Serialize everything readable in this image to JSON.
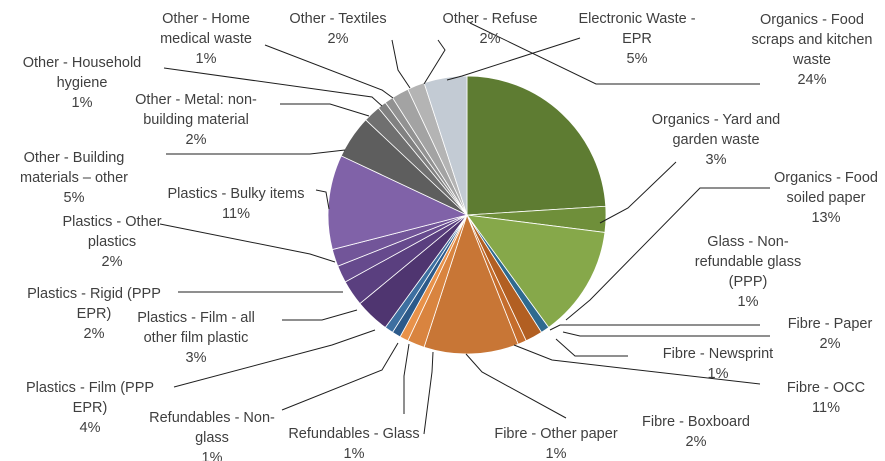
{
  "chart_data": {
    "type": "pie",
    "start_angle_deg": 0,
    "direction": "clockwise",
    "slices": [
      {
        "lines": [
          "Organics - Food",
          "scraps and kitchen",
          "waste"
        ],
        "value": 24,
        "label": "24%",
        "color": "#5e7c32"
      },
      {
        "lines": [
          "Organics - Yard and",
          "garden waste"
        ],
        "value": 3,
        "label": "3%",
        "color": "#6f8f3a"
      },
      {
        "lines": [
          "Organics - Food",
          "soiled paper"
        ],
        "value": 13,
        "label": "13%",
        "color": "#86a84a"
      },
      {
        "lines": [
          "Glass - Non-",
          "refundable glass",
          "(PPP)"
        ],
        "value": 1,
        "label": "1%",
        "color": "#2f6a8f"
      },
      {
        "lines": [
          "Fibre - Paper"
        ],
        "value": 2,
        "label": "2%",
        "color": "#b25f22"
      },
      {
        "lines": [
          "Fibre - Newsprint"
        ],
        "value": 1,
        "label": "1%",
        "color": "#c56d2c"
      },
      {
        "lines": [
          "Fibre - OCC"
        ],
        "value": 11,
        "label": "11%",
        "color": "#c87636"
      },
      {
        "lines": [
          "Fibre - Boxboard"
        ],
        "value": 2,
        "label": "2%",
        "color": "#d9843f"
      },
      {
        "lines": [
          "Fibre - Other paper"
        ],
        "value": 1,
        "label": "1%",
        "color": "#e8924a"
      },
      {
        "lines": [
          "Refundables - Glass"
        ],
        "value": 1,
        "label": "1%",
        "color": "#2c5a8a"
      },
      {
        "lines": [
          "Refundables - Non-",
          "glass"
        ],
        "value": 1,
        "label": "1%",
        "color": "#3d6fa0"
      },
      {
        "lines": [
          "Plastics - Film (PPP",
          "EPR)"
        ],
        "value": 4,
        "label": "4%",
        "color": "#4f3570"
      },
      {
        "lines": [
          "Plastics - Film - all",
          "other film plastic"
        ],
        "value": 3,
        "label": "3%",
        "color": "#5a3f7f"
      },
      {
        "lines": [
          "Plastics - Rigid (PPP",
          "EPR)"
        ],
        "value": 2,
        "label": "2%",
        "color": "#664a8d"
      },
      {
        "lines": [
          "Plastics - Other",
          "plastics"
        ],
        "value": 2,
        "label": "2%",
        "color": "#725599"
      },
      {
        "lines": [
          "Plastics - Bulky items"
        ],
        "value": 11,
        "label": "11%",
        "color": "#8062a8"
      },
      {
        "lines": [
          "Other - Building",
          "materials – other"
        ],
        "value": 5,
        "label": "5%",
        "color": "#5e5e5e"
      },
      {
        "lines": [
          "Other - Metal: non-",
          "building material"
        ],
        "value": 2,
        "label": "2%",
        "color": "#707070"
      },
      {
        "lines": [
          "Other - Household",
          "hygiene"
        ],
        "value": 1,
        "label": "1%",
        "color": "#818181"
      },
      {
        "lines": [
          "Other - Home",
          "medical waste"
        ],
        "value": 1,
        "label": "1%",
        "color": "#929292"
      },
      {
        "lines": [
          "Other - Textiles"
        ],
        "value": 2,
        "label": "2%",
        "color": "#a3a3a3"
      },
      {
        "lines": [
          "Other - Refuse"
        ],
        "value": 2,
        "label": "2%",
        "color": "#b4b4b4"
      },
      {
        "lines": [
          "Electronic Waste -",
          "EPR"
        ],
        "value": 5,
        "label": "5%",
        "color": "#c3cbd4"
      }
    ]
  }
}
